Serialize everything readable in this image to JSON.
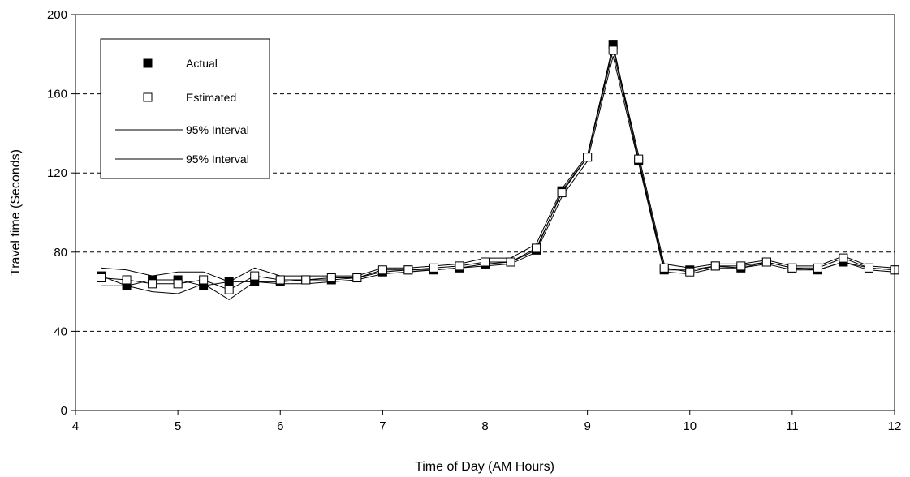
{
  "chart_data": {
    "type": "line",
    "xlabel": "Time of Day (AM Hours)",
    "ylabel": "Travel time (Seconds)",
    "xlim": [
      4,
      12
    ],
    "ylim": [
      0,
      200
    ],
    "x_ticks": [
      4,
      5,
      6,
      7,
      8,
      9,
      10,
      11,
      12
    ],
    "y_ticks": [
      0,
      40,
      80,
      120,
      160,
      200
    ],
    "grid": "horizontal dashed",
    "legend_position": "top-left",
    "series": [
      {
        "name": "Actual",
        "marker": "filled-square",
        "color": "#000000",
        "points": [
          [
            4.25,
            68
          ],
          [
            4.5,
            63
          ],
          [
            4.75,
            66
          ],
          [
            5.0,
            66
          ],
          [
            5.25,
            63
          ],
          [
            5.5,
            65
          ],
          [
            5.75,
            65
          ],
          [
            6.0,
            65
          ],
          [
            6.25,
            66
          ],
          [
            6.5,
            66
          ],
          [
            6.75,
            67
          ],
          [
            7.0,
            70
          ],
          [
            7.25,
            71
          ],
          [
            7.5,
            71
          ],
          [
            7.75,
            72
          ],
          [
            8.0,
            74
          ],
          [
            8.25,
            75
          ],
          [
            8.5,
            81
          ],
          [
            8.75,
            111
          ],
          [
            9.0,
            128
          ],
          [
            9.25,
            185
          ],
          [
            9.5,
            126
          ],
          [
            9.75,
            71
          ],
          [
            10.0,
            71
          ],
          [
            10.25,
            73
          ],
          [
            10.5,
            72
          ],
          [
            10.75,
            75
          ],
          [
            11.0,
            72
          ],
          [
            11.25,
            71
          ],
          [
            11.5,
            75
          ],
          [
            11.75,
            72
          ],
          [
            12.0,
            71
          ]
        ]
      },
      {
        "name": "Estimated",
        "marker": "open-square",
        "color": "#000000",
        "points": [
          [
            4.25,
            67
          ],
          [
            4.5,
            66
          ],
          [
            4.75,
            64
          ],
          [
            5.0,
            64
          ],
          [
            5.25,
            66
          ],
          [
            5.5,
            61
          ],
          [
            5.75,
            68
          ],
          [
            6.0,
            66
          ],
          [
            6.25,
            66
          ],
          [
            6.5,
            67
          ],
          [
            6.75,
            67
          ],
          [
            7.0,
            71
          ],
          [
            7.25,
            71
          ],
          [
            7.5,
            72
          ],
          [
            7.75,
            73
          ],
          [
            8.0,
            75
          ],
          [
            8.25,
            75
          ],
          [
            8.5,
            82
          ],
          [
            8.75,
            110
          ],
          [
            9.0,
            128
          ],
          [
            9.25,
            182
          ],
          [
            9.5,
            127
          ],
          [
            9.75,
            72
          ],
          [
            10.0,
            70
          ],
          [
            10.25,
            73
          ],
          [
            10.5,
            73
          ],
          [
            10.75,
            75
          ],
          [
            11.0,
            72
          ],
          [
            11.25,
            72
          ],
          [
            11.5,
            77
          ],
          [
            11.75,
            72
          ],
          [
            12.0,
            71
          ]
        ]
      },
      {
        "name": "95% Interval",
        "marker": "none",
        "color": "#000000",
        "points": [
          [
            4.25,
            72
          ],
          [
            4.5,
            71
          ],
          [
            4.75,
            68
          ],
          [
            5.0,
            70
          ],
          [
            5.25,
            70
          ],
          [
            5.5,
            65
          ],
          [
            5.75,
            72
          ],
          [
            6.0,
            68
          ],
          [
            6.25,
            68
          ],
          [
            6.5,
            68
          ],
          [
            6.75,
            68
          ],
          [
            7.0,
            72
          ],
          [
            7.25,
            72
          ],
          [
            7.5,
            73
          ],
          [
            7.75,
            74
          ],
          [
            8.0,
            77
          ],
          [
            8.25,
            77
          ],
          [
            8.5,
            84
          ],
          [
            8.75,
            112
          ],
          [
            9.0,
            129
          ],
          [
            9.25,
            184
          ],
          [
            9.5,
            129
          ],
          [
            9.75,
            74
          ],
          [
            10.0,
            72
          ],
          [
            10.25,
            74
          ],
          [
            10.5,
            74
          ],
          [
            10.75,
            76
          ],
          [
            11.0,
            73
          ],
          [
            11.25,
            73
          ],
          [
            11.5,
            78
          ],
          [
            11.75,
            73
          ],
          [
            12.0,
            72
          ]
        ]
      },
      {
        "name": "95% Interval",
        "marker": "none",
        "color": "#000000",
        "points": [
          [
            4.25,
            63
          ],
          [
            4.5,
            63
          ],
          [
            4.75,
            60
          ],
          [
            5.0,
            59
          ],
          [
            5.25,
            64
          ],
          [
            5.5,
            56
          ],
          [
            5.75,
            65
          ],
          [
            6.0,
            64
          ],
          [
            6.25,
            64
          ],
          [
            6.5,
            65
          ],
          [
            6.75,
            66
          ],
          [
            7.0,
            69
          ],
          [
            7.25,
            70
          ],
          [
            7.5,
            71
          ],
          [
            7.75,
            72
          ],
          [
            8.0,
            73
          ],
          [
            8.25,
            74
          ],
          [
            8.5,
            80
          ],
          [
            8.75,
            108
          ],
          [
            9.0,
            126
          ],
          [
            9.25,
            179
          ],
          [
            9.5,
            125
          ],
          [
            9.75,
            70
          ],
          [
            10.0,
            69
          ],
          [
            10.25,
            72
          ],
          [
            10.5,
            72
          ],
          [
            10.75,
            74
          ],
          [
            11.0,
            71
          ],
          [
            11.25,
            71
          ],
          [
            11.5,
            75
          ],
          [
            11.75,
            71
          ],
          [
            12.0,
            70
          ]
        ]
      }
    ]
  }
}
